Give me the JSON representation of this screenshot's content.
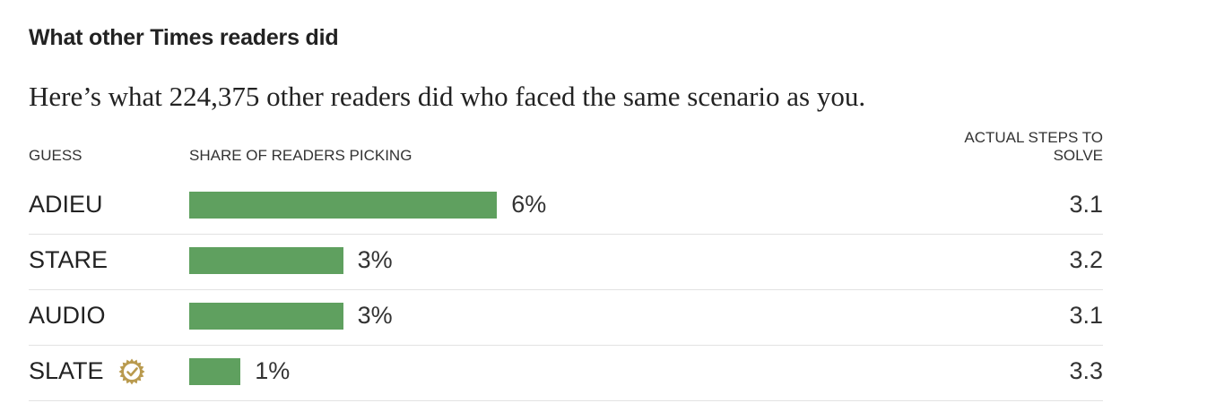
{
  "heading": "What other Times readers did",
  "subheading": "Here’s what 224,375 other readers did who faced the same scenario as you.",
  "columns": {
    "guess": "GUESS",
    "share": "SHARE OF READERS PICKING",
    "steps_line1": "ACTUAL STEPS TO",
    "steps_line2": "SOLVE"
  },
  "colors": {
    "bar": "#5fa05f",
    "badge": "#b99a4e"
  },
  "chart_data": {
    "type": "bar",
    "categories": [
      "ADIEU",
      "STARE",
      "AUDIO",
      "SLATE"
    ],
    "values": [
      6,
      3,
      3,
      1
    ],
    "value_labels": [
      "6%",
      "3%",
      "3%",
      "1%"
    ],
    "steps": [
      "3.1",
      "3.2",
      "3.1",
      "3.3"
    ],
    "badge_icon": [
      null,
      null,
      null,
      "checkmark-badge-icon"
    ],
    "title": "What other Times readers did",
    "xlabel": "SHARE OF READERS PICKING",
    "ylabel": "GUESS"
  },
  "rows": [
    {
      "guess": "ADIEU",
      "pct": "6%",
      "steps": "3.1"
    },
    {
      "guess": "STARE",
      "pct": "3%",
      "steps": "3.2"
    },
    {
      "guess": "AUDIO",
      "pct": "3%",
      "steps": "3.1"
    },
    {
      "guess": "SLATE",
      "pct": "1%",
      "steps": "3.3"
    }
  ]
}
